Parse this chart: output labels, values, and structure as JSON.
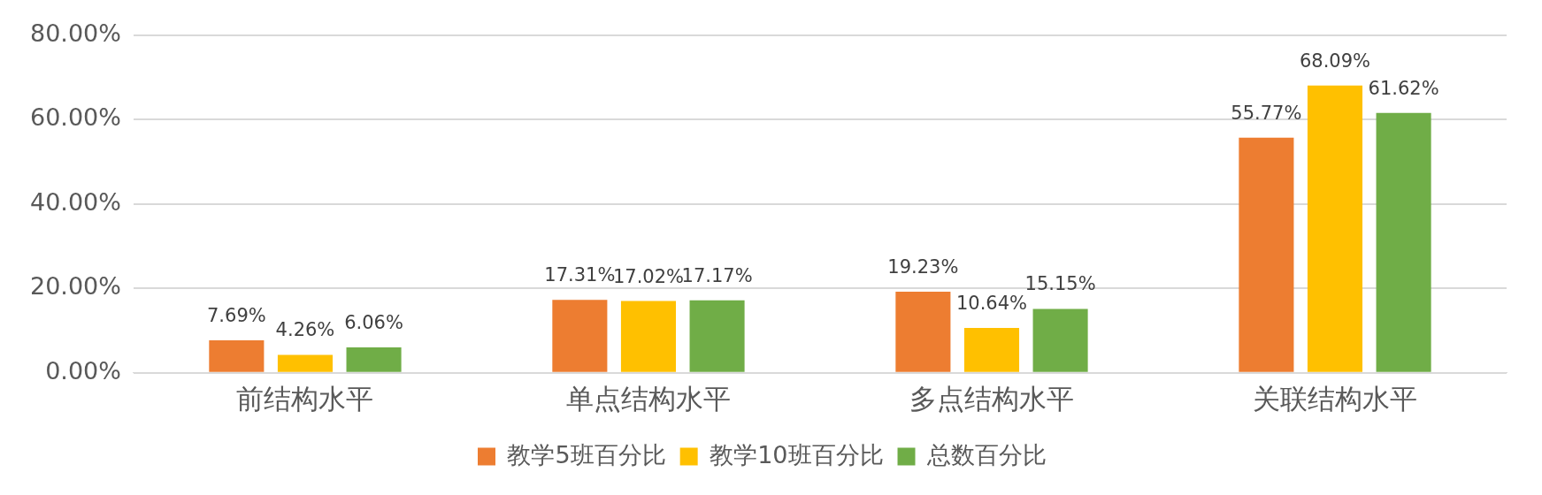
{
  "chart_data": {
    "type": "bar",
    "categories": [
      "前结构水平",
      "单点结构水平",
      "多点结构水平",
      "关联结构水平"
    ],
    "series": [
      {
        "name": "教学5班百分比",
        "color": "#ed7d31",
        "values": [
          7.69,
          17.31,
          19.23,
          55.77
        ],
        "value_labels": [
          "7.69%",
          "17.31%",
          "19.23%",
          "55.77%"
        ]
      },
      {
        "name": "教学10班百分比",
        "color": "#ffc000",
        "values": [
          4.26,
          17.02,
          10.64,
          68.09
        ],
        "value_labels": [
          "4.26%",
          "17.02%",
          "10.64%",
          "68.09%"
        ]
      },
      {
        "name": "总数百分比",
        "color": "#70ad47",
        "values": [
          6.06,
          17.17,
          15.15,
          61.62
        ],
        "value_labels": [
          "6.06%",
          "17.17%",
          "15.15%",
          "61.62%"
        ]
      }
    ],
    "ylim": [
      0,
      80
    ],
    "yticks": [
      {
        "value": 0,
        "label": "0.00%"
      },
      {
        "value": 20,
        "label": "20.00%"
      },
      {
        "value": 40,
        "label": "40.00%"
      },
      {
        "value": 60,
        "label": "60.00%"
      },
      {
        "value": 80,
        "label": "80.00%"
      }
    ],
    "grid": "y",
    "legend": "bottom"
  }
}
